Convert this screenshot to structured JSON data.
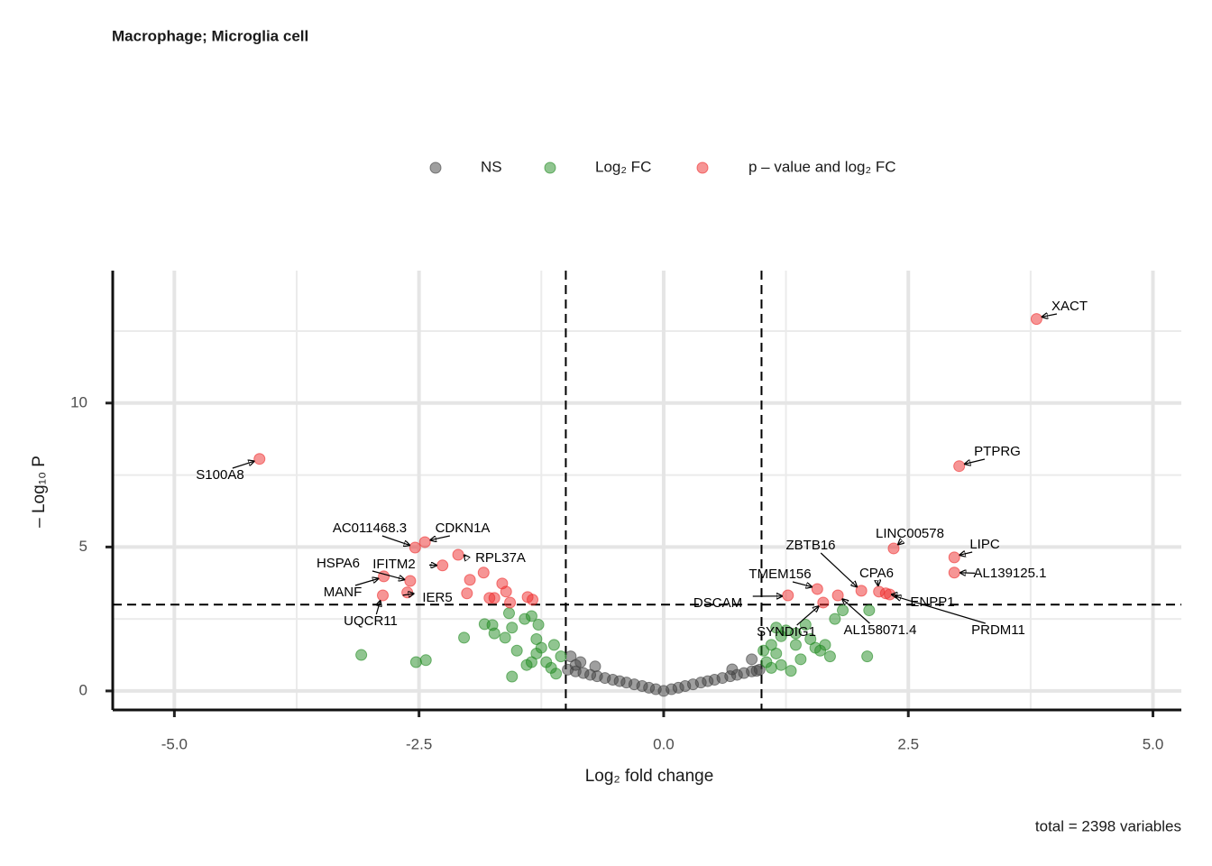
{
  "chart_data": {
    "type": "scatter",
    "title": "Macrophage; Microglia cell",
    "caption": "total = 2398 variables",
    "x_label": "Log₂ fold change",
    "y_label": "– Log₁₀ P",
    "legend": "top",
    "grid": true,
    "xlim": [
      -5.63,
      5.29
    ],
    "ylim": [
      -0.66,
      14.6
    ],
    "xticks": [
      {
        "value": -5,
        "label": "-5.0"
      },
      {
        "value": -2.5,
        "label": "-2.5"
      },
      {
        "value": 0,
        "label": "0.0"
      },
      2.5,
      {
        "value": 5,
        "label": "5.0"
      }
    ],
    "yticks": [
      0,
      5,
      10
    ],
    "vlines": [
      -1,
      1
    ],
    "hline": 3,
    "series": [
      {
        "name": "NS",
        "color": "#404040",
        "x": [
          -0.98,
          -0.9,
          -0.82,
          -0.75,
          -0.68,
          -0.6,
          -0.52,
          -0.45,
          -0.38,
          -0.3,
          -0.22,
          -0.15,
          -0.08,
          0,
          0.08,
          0.15,
          0.22,
          0.3,
          0.38,
          0.45,
          0.52,
          0.6,
          0.68,
          0.75,
          0.82,
          0.9,
          0.98,
          -0.95,
          -0.9,
          -0.85,
          0.9,
          0.95,
          -0.7,
          0.7
        ],
        "values": [
          0.74,
          0.68,
          0.62,
          0.56,
          0.51,
          0.45,
          0.39,
          0.34,
          0.29,
          0.23,
          0.17,
          0.11,
          0.06,
          0,
          0.06,
          0.11,
          0.17,
          0.23,
          0.29,
          0.34,
          0.39,
          0.45,
          0.51,
          0.56,
          0.62,
          0.68,
          0.74,
          1.2,
          0.9,
          1.0,
          1.1,
          0.7,
          0.85,
          0.75
        ]
      },
      {
        "name": "Log₂ FC",
        "color": "#228b22",
        "x": [
          -3.09,
          -2.53,
          -2.43,
          -2.04,
          -1.83,
          -1.75,
          -1.73,
          -1.62,
          -1.55,
          -1.58,
          -1.42,
          -1.35,
          -1.28,
          -1.3,
          -1.25,
          -1.2,
          -1.15,
          -1.1,
          -1.05,
          -1.35,
          -1.5,
          -1.4,
          -1.55,
          -1.12,
          -1.3,
          1.1,
          1.15,
          1.2,
          1.25,
          1.35,
          1.45,
          1.5,
          1.55,
          1.65,
          1.75,
          1.83,
          2.1,
          2.08,
          1.05,
          1.1,
          1.2,
          1.4,
          1.3,
          1.6,
          1.7,
          1.15,
          1.02,
          1.35
        ],
        "values": [
          1.25,
          1.0,
          1.07,
          1.85,
          2.32,
          2.29,
          2.0,
          1.85,
          2.2,
          2.7,
          2.5,
          2.6,
          2.3,
          1.8,
          1.5,
          1.0,
          0.8,
          0.6,
          1.2,
          1.0,
          1.4,
          0.9,
          0.5,
          1.6,
          1.3,
          0.8,
          1.3,
          1.9,
          2.1,
          2.0,
          2.3,
          1.8,
          1.5,
          1.6,
          2.5,
          2.8,
          2.8,
          1.2,
          1.0,
          1.6,
          0.9,
          1.1,
          0.7,
          1.4,
          1.2,
          2.2,
          1.4,
          1.6
        ]
      },
      {
        "name": "p – value and log₂ FC",
        "color": "#ee2c2c",
        "x": [
          3.81,
          3.02,
          -4.13,
          2.35,
          2.97,
          2.97,
          2.02,
          2.2,
          2.27,
          2.31,
          1.78,
          1.57,
          1.27,
          1.63,
          -2.54,
          -2.44,
          -2.1,
          -2.26,
          -2.59,
          -2.86,
          -2.62,
          -2.87,
          -1.98,
          -1.84,
          -2.01,
          -1.65,
          -1.61,
          -1.78,
          -1.73,
          -1.57,
          -1.39,
          -1.34
        ],
        "values": [
          12.92,
          7.81,
          8.06,
          4.95,
          4.64,
          4.11,
          3.48,
          3.45,
          3.39,
          3.35,
          3.32,
          3.54,
          3.32,
          3.07,
          4.98,
          5.17,
          4.73,
          4.36,
          3.82,
          3.98,
          3.42,
          3.32,
          3.86,
          4.11,
          3.39,
          3.73,
          3.45,
          3.23,
          3.23,
          3.07,
          3.26,
          3.17
        ],
        "point_labels": [
          "XACT",
          "PTPRG",
          "S100A8",
          "LINC00578",
          "LIPC",
          "AL139125.1",
          "ZBTB16",
          "CPA6",
          "ENPP1",
          "PRDM11",
          "AL158071.4",
          "TMEM156",
          "DSCAM",
          "SYNDIG1",
          "AC011468.3",
          "CDKN1A",
          "RPL37A",
          "IFITM2",
          "HSPA6",
          "MANF",
          "IER5",
          "UQCR11",
          null,
          null,
          null,
          null,
          null,
          null,
          null,
          null,
          null,
          null
        ]
      }
    ]
  }
}
